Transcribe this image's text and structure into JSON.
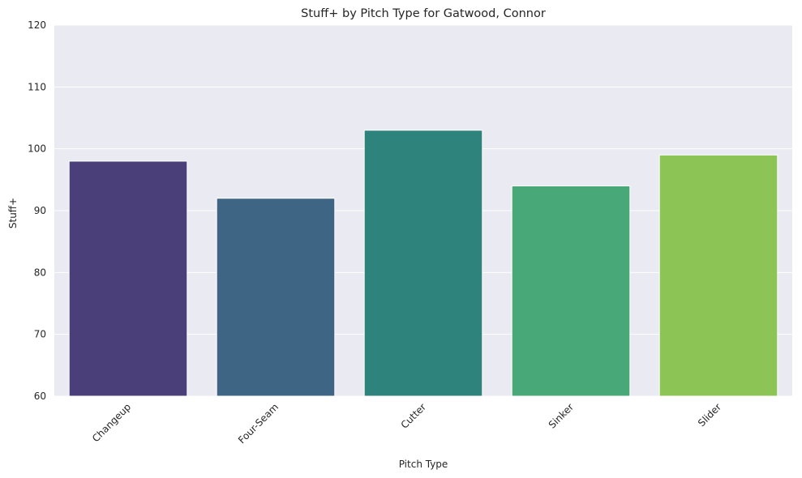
{
  "chart_data": {
    "type": "bar",
    "title": "Stuff+ by Pitch Type for Gatwood, Connor",
    "xlabel": "Pitch Type",
    "ylabel": "Stuff+",
    "categories": [
      "Changeup",
      "Four-Seam",
      "Cutter",
      "Sinker",
      "Slider"
    ],
    "values": [
      98,
      92,
      103,
      94,
      99
    ],
    "ylim": [
      60,
      120
    ],
    "yticks": [
      60,
      70,
      80,
      90,
      100,
      110,
      120
    ],
    "grid": true,
    "legend": "none",
    "colors": [
      "#4a3f78",
      "#3e6583",
      "#2e837d",
      "#48a878",
      "#8dc456"
    ],
    "background": "#eaeaf2"
  }
}
